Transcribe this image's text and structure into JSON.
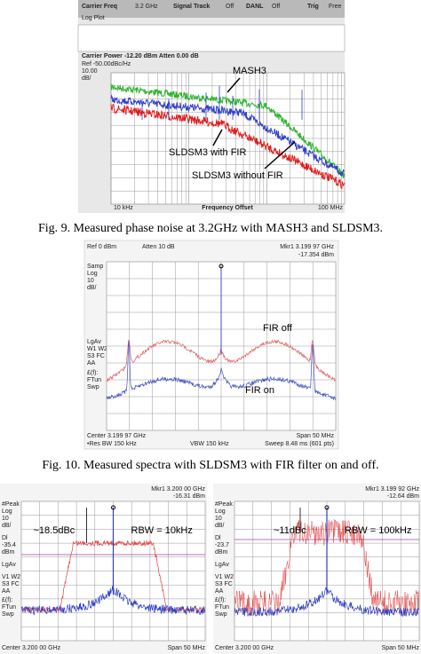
{
  "fig9": {
    "header": [
      "Carrier Freq",
      "3.2 GHz",
      "Signal Track",
      "Off",
      "DANL",
      "Off",
      "Trig",
      "Free"
    ],
    "mode": "Log Plot",
    "carrier_power": "Carrier Power -12.20 dBm  Atten 0.00 dB",
    "ref": "Ref -50.00dBc/Hz",
    "scale": [
      "10.00",
      "dB/"
    ],
    "x_start": "10 kHz",
    "x_label": "Frequency Offset",
    "x_end": "100 MHz",
    "annotations": [
      "MASH3",
      "SLDSM3 with FIR",
      "SLDSM3 without FIR"
    ],
    "caption": "Fig. 9. Measured phase noise at 3.2GHz with MASH3 and SLDSM3."
  },
  "fig10": {
    "ref": "Ref 0 dBm",
    "atten": "Atten 10 dB",
    "marker": "Mkr1 3.199 97 GHz",
    "marker_level": "-17.354 dBm",
    "side": [
      "Samp",
      "Log",
      "10",
      "dB/",
      "LgAv",
      "W1  W2",
      "S3  FC",
      "AA",
      "£(f):",
      "FTun",
      "Swp"
    ],
    "center": "Center 3.199 97 GHz",
    "span": "Span 50 MHz",
    "rbw": "•Res BW 150 kHz",
    "vbw": "VBW 150 kHz",
    "sweep": "Sweep 8.48 ms (601 pts)",
    "annotations": [
      "FIR off",
      "FIR on"
    ],
    "caption": "Fig. 10. Measured spectra with SLDSM3 with FIR filter on and off."
  },
  "fig11": [
    {
      "side": [
        "#Peak",
        "Log",
        "10",
        "dB/",
        "Dl",
        "-35.4",
        "dBm",
        "LgAv",
        "V1  W2",
        "S3  FC",
        "AA",
        "£(f):",
        "FTun",
        "Swp"
      ],
      "marker": "Mkr1 3.200 00 GHz",
      "marker_level": "-16.31 dBm",
      "center": "Center 3.200 00 GHz",
      "span": "Span 50 MHz",
      "ratio": "~18.5dBc",
      "rbw": "RBW = 10kHz"
    },
    {
      "side": [
        "#Peak",
        "Log",
        "10",
        "dB/",
        "Dl",
        "-23.7",
        "dBm",
        "LgAv",
        "V1  W2",
        "S3  FC",
        "AA",
        "£(f):",
        "FTun",
        "Swp"
      ],
      "marker": "Mkr1 3.199 92 GHz",
      "marker_level": "-12.64 dBm",
      "center": "Center 3.200 00 GHz",
      "span": "Span 50 MHz",
      "ratio": "~11dBc",
      "rbw": "RBW = 100kHz"
    }
  ]
}
